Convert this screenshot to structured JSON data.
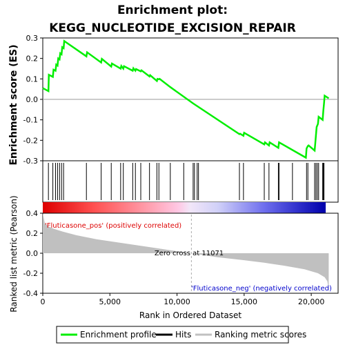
{
  "chart_data": {
    "type": "line",
    "title_line1": "Enrichment plot:",
    "title_line2": "KEGG_NUCLEOTIDE_EXCISION_REPAIR",
    "ylabel_es": "Enrichment score (ES)",
    "ylabel_metric": "Ranked list metric (Pearson)",
    "xlabel": "Rank in Ordered Dataset",
    "xlim": [
      0,
      22000
    ],
    "es_ylim": [
      -0.3,
      0.3
    ],
    "metric_ylim": [
      -0.4,
      0.4
    ],
    "x_ticks": [
      0,
      5000,
      10000,
      15000,
      20000
    ],
    "x_tick_labels": [
      "0",
      "5,000",
      "10,000",
      "15,000",
      "20,000"
    ],
    "es_ticks": [
      -0.3,
      -0.2,
      -0.1,
      0.0,
      0.1,
      0.2,
      0.3
    ],
    "es_tick_labels": [
      "-0.3",
      "-0.2",
      "-0.1",
      "0.0",
      "0.1",
      "0.2",
      "0.3"
    ],
    "metric_ticks": [
      -0.4,
      -0.2,
      0.0,
      0.2,
      0.4
    ],
    "metric_tick_labels": [
      "-0.4",
      "-0.2",
      "0.0",
      "0.2",
      "0.4"
    ],
    "enrichment_profile": {
      "x": [
        0,
        420,
        450,
        750,
        800,
        950,
        1000,
        1100,
        1150,
        1250,
        1300,
        1400,
        1450,
        1550,
        1600,
        3250,
        3300,
        4350,
        4400,
        5100,
        5150,
        5800,
        5850,
        6000,
        6050,
        6700,
        6750,
        6900,
        6950,
        7300,
        7350,
        7950,
        8000,
        8500,
        8550,
        8650,
        8700,
        9500,
        11200,
        14650,
        14700,
        14950,
        15000,
        16500,
        16550,
        16850,
        16900,
        17550,
        17600,
        19600,
        19650,
        19750,
        19800,
        20250,
        20300,
        20350,
        20400,
        20500,
        20550,
        20850,
        20900,
        20950,
        21000,
        21300
      ],
      "y": [
        0.055,
        0.04,
        0.12,
        0.11,
        0.145,
        0.14,
        0.17,
        0.165,
        0.2,
        0.195,
        0.225,
        0.22,
        0.255,
        0.25,
        0.285,
        0.21,
        0.23,
        0.18,
        0.198,
        0.16,
        0.175,
        0.15,
        0.163,
        0.15,
        0.162,
        0.14,
        0.152,
        0.14,
        0.148,
        0.137,
        0.142,
        0.112,
        0.118,
        0.09,
        0.1,
        0.098,
        0.1,
        0.06,
        -0.02,
        -0.17,
        -0.168,
        -0.178,
        -0.163,
        -0.22,
        -0.21,
        -0.225,
        -0.21,
        -0.237,
        -0.21,
        -0.285,
        -0.24,
        -0.228,
        -0.225,
        -0.25,
        -0.215,
        -0.175,
        -0.135,
        -0.12,
        -0.085,
        -0.1,
        -0.055,
        -0.02,
        0.018,
        0.005
      ]
    },
    "hits_x": [
      420,
      750,
      950,
      1100,
      1250,
      1400,
      1550,
      3250,
      4350,
      5100,
      5800,
      6000,
      6700,
      6900,
      7300,
      7950,
      8500,
      8650,
      9500,
      10500,
      11200,
      11300,
      11500,
      11600,
      14650,
      14950,
      16500,
      16850,
      17550,
      17600,
      18600,
      19650,
      19750,
      20250,
      20350,
      20450,
      20550,
      20850,
      20900,
      20950
    ],
    "metric_curve": {
      "x": [
        0,
        150,
        400,
        800,
        1500,
        2500,
        4000,
        6000,
        8000,
        10000,
        11071,
        13000,
        15000,
        16500,
        18000,
        19500,
        20500,
        21000,
        21200,
        21300
      ],
      "y": [
        0.4,
        0.3,
        0.27,
        0.245,
        0.215,
        0.18,
        0.14,
        0.1,
        0.06,
        0.02,
        0.0,
        -0.04,
        -0.07,
        -0.095,
        -0.125,
        -0.16,
        -0.2,
        -0.24,
        -0.28,
        -0.37
      ]
    },
    "zero_cross_rank": 11071,
    "zero_cross_label": "Zero cross at 11071",
    "pos_label": "'Fluticasone_pos' (positively correlated)",
    "neg_label": "'Fluticasone_neg' (negatively correlated)",
    "colors": {
      "profile": "#00ee00",
      "hits": "#000000",
      "metric_fill": "#c0c0c0",
      "pos_label": "#dd0000",
      "neg_label": "#0000cc"
    },
    "legend": [
      {
        "label": "Enrichment profile",
        "color": "#00ee00"
      },
      {
        "label": "Hits",
        "color": "#000000"
      },
      {
        "label": "Ranking metric scores",
        "color": "#c0c0c0"
      }
    ],
    "legend_placement": "bottom"
  }
}
